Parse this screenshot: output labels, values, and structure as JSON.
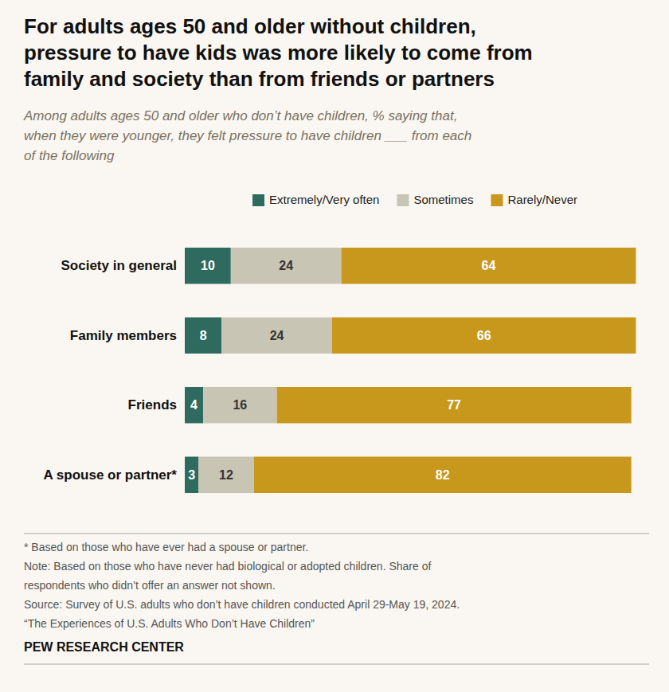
{
  "chart_data": {
    "type": "bar",
    "orientation": "horizontal",
    "stacked": true,
    "data_labels": true,
    "tick_labels": "y",
    "legend": "top",
    "grid": false,
    "title": [
      "For adults ages 50 and older without children,",
      "pressure to have kids was more likely to come from",
      "family and society than from friends or partners"
    ],
    "subtitle": [
      "Among adults ages 50 and older who don’t have children, % saying that,",
      "when they were younger, they felt pressure to have children ___ from each",
      "of the following"
    ],
    "categories": [
      "Society in general",
      "Family members",
      "Friends",
      "A spouse or partner*"
    ],
    "series": [
      {
        "name": "Extremely/Very often",
        "color": "#2e6b5e",
        "values": [
          10,
          8,
          4,
          3
        ]
      },
      {
        "name": "Sometimes",
        "color": "#c9c5b5",
        "values": [
          24,
          24,
          16,
          12
        ]
      },
      {
        "name": "Rarely/Never",
        "color": "#c8981c",
        "values": [
          64,
          66,
          77,
          82
        ]
      }
    ],
    "xlim": [
      0,
      100
    ],
    "annotations": [
      "* Based on those who have ever had a spouse or partner.",
      "Note: Based on those who have never had biological or adopted children. Share of",
      "respondents who didn’t offer an answer not shown.",
      "Source: Survey of U.S. adults who don’t have children conducted April 29-May 19, 2024.",
      "“The Experiences of U.S. Adults Who Don’t Have Children”",
      "PEW RESEARCH CENTER"
    ]
  }
}
